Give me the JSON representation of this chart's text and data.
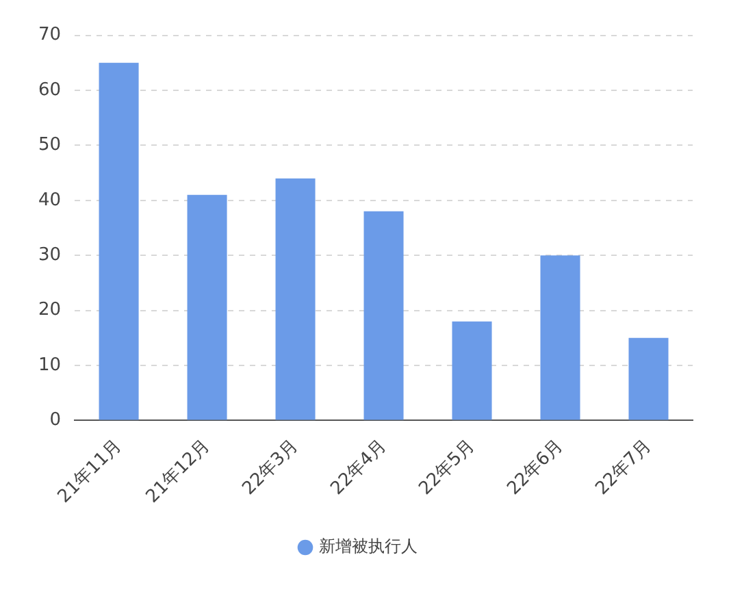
{
  "chart_data": {
    "type": "bar",
    "categories": [
      "21年11月",
      "21年12月",
      "22年3月",
      "22年4月",
      "22年5月",
      "22年6月",
      "22年7月"
    ],
    "series": [
      {
        "name": "新增被执行人",
        "color": "#6b9be8",
        "values": [
          65,
          41,
          44,
          38,
          18,
          30,
          15
        ]
      }
    ],
    "ylim": [
      0,
      70
    ],
    "yticks": [
      0,
      10,
      20,
      30,
      40,
      50,
      60,
      70
    ],
    "grid": "y",
    "legend": "bottom"
  }
}
